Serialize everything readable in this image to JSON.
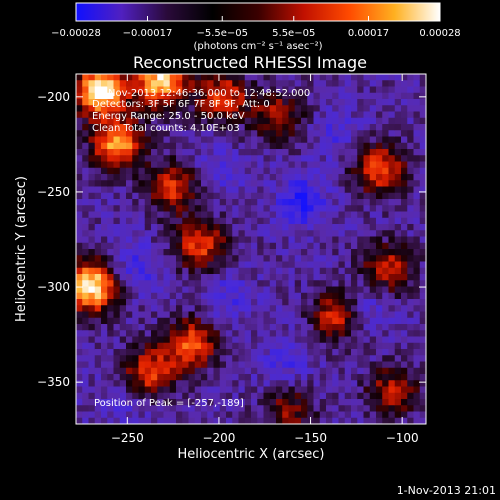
{
  "chart_data": {
    "type": "heatmap",
    "title": "Reconstructed RHESSI Image",
    "xlabel": "Heliocentric X (arcsec)",
    "ylabel": "Heliocentric Y (arcsec)",
    "xlim": [
      -278,
      -87
    ],
    "ylim": [
      -372,
      -188
    ],
    "xticks": [
      -250,
      -200,
      -150,
      -100
    ],
    "xtick_labels": [
      "−250",
      "−200",
      "−150",
      "−100"
    ],
    "yticks": [
      -200,
      -250,
      -300,
      -350
    ],
    "ytick_labels": [
      "−200",
      "−250",
      "−300",
      "−350"
    ],
    "colorbar": {
      "range": [
        -0.00028,
        0.00028
      ],
      "ticks": [
        -0.00028,
        -0.00017,
        -5.5e-05,
        5.5e-05,
        0.00017,
        0.00028
      ],
      "tick_labels": [
        "−0.00028",
        "−0.00017",
        "−5.5e−05",
        "5.5e−05",
        "0.00017",
        "0.00028"
      ],
      "unit_label": "(photons cm⁻² s⁻¹ asec⁻²)",
      "colors": [
        "#1010ff",
        "#5020c0",
        "#2a0a3a",
        "#000000",
        "#3a0000",
        "#c01000",
        "#ff4a00",
        "#ffb020",
        "#ffffff"
      ]
    },
    "annotations": {
      "time_range": "1-Nov-2013 12:46:36.000 to 12:48:52.000",
      "detectors": "Detectors: 3F 5F 6F 7F 8F 9F, Att: 0",
      "energy_range": "Energy Range: 25.0 - 50.0 keV",
      "counts": "Clean    Total counts: 4.10E+03",
      "peak": "Position of Peak = [-257,-189]"
    },
    "peak": [
      -257,
      -189
    ],
    "bright_regions": [
      {
        "x": -265,
        "y": -197,
        "strength": 1.0
      },
      {
        "x": -232,
        "y": -192,
        "strength": 0.85
      },
      {
        "x": -198,
        "y": -200,
        "strength": 0.55
      },
      {
        "x": -255,
        "y": -225,
        "strength": 0.75
      },
      {
        "x": -270,
        "y": -300,
        "strength": 0.95
      },
      {
        "x": -225,
        "y": -248,
        "strength": 0.5
      },
      {
        "x": -210,
        "y": -278,
        "strength": 0.55
      },
      {
        "x": -215,
        "y": -330,
        "strength": 0.6
      },
      {
        "x": -238,
        "y": -345,
        "strength": 0.55
      },
      {
        "x": -112,
        "y": -238,
        "strength": 0.6
      },
      {
        "x": -108,
        "y": -290,
        "strength": 0.5
      },
      {
        "x": -135,
        "y": -315,
        "strength": 0.5
      },
      {
        "x": -168,
        "y": -210,
        "strength": 0.4
      },
      {
        "x": -105,
        "y": -355,
        "strength": 0.45
      },
      {
        "x": -162,
        "y": -365,
        "strength": 0.35
      }
    ],
    "dark_regions": [
      {
        "x": -155,
        "y": -255,
        "strength": 0.9
      },
      {
        "x": -245,
        "y": -290,
        "strength": 0.6
      },
      {
        "x": -195,
        "y": -305,
        "strength": 0.5
      },
      {
        "x": -120,
        "y": -310,
        "strength": 0.6
      },
      {
        "x": -165,
        "y": -340,
        "strength": 0.5
      },
      {
        "x": -200,
        "y": -240,
        "strength": 0.4
      },
      {
        "x": -135,
        "y": -220,
        "strength": 0.45
      },
      {
        "x": -250,
        "y": -360,
        "strength": 0.35
      }
    ]
  },
  "footer": {
    "timestamp": "1-Nov-2013 21:01"
  }
}
